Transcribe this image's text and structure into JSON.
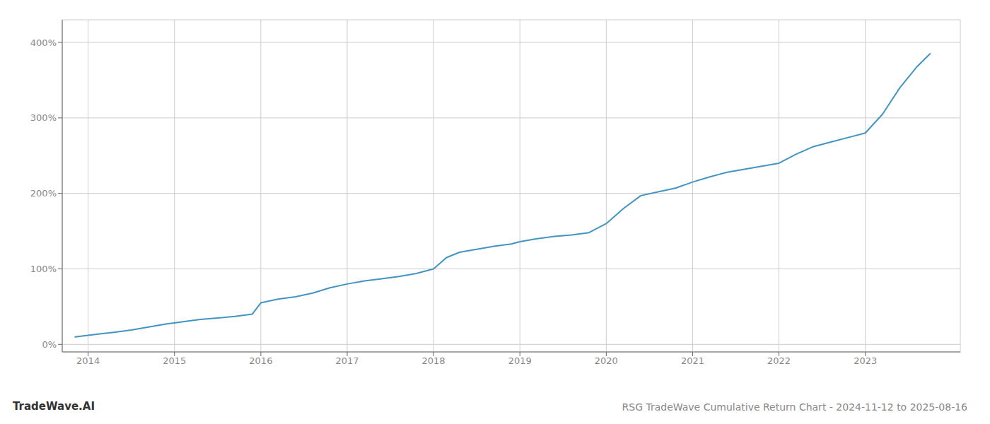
{
  "chart_data": {
    "type": "line",
    "title": "RSG TradeWave Cumulative Return Chart - 2024-11-12 to 2025-08-16",
    "annotations": [
      "TradeWave.AI"
    ],
    "x": [
      2013.85,
      2014.0,
      2014.15,
      2014.3,
      2014.5,
      2014.7,
      2014.9,
      2015.1,
      2015.3,
      2015.5,
      2015.7,
      2015.9,
      2016.0,
      2016.2,
      2016.4,
      2016.6,
      2016.8,
      2017.0,
      2017.2,
      2017.4,
      2017.6,
      2017.8,
      2018.0,
      2018.15,
      2018.3,
      2018.5,
      2018.7,
      2018.9,
      2019.0,
      2019.2,
      2019.4,
      2019.6,
      2019.8,
      2020.0,
      2020.2,
      2020.4,
      2020.6,
      2020.8,
      2021.0,
      2021.2,
      2021.4,
      2021.6,
      2021.8,
      2022.0,
      2022.2,
      2022.4,
      2022.6,
      2022.8,
      2023.0,
      2023.2,
      2023.4,
      2023.6,
      2023.75
    ],
    "values": [
      10,
      12,
      14,
      16,
      19,
      23,
      27,
      30,
      33,
      35,
      37,
      40,
      55,
      60,
      63,
      68,
      75,
      80,
      84,
      87,
      90,
      94,
      100,
      115,
      122,
      126,
      130,
      133,
      136,
      140,
      143,
      145,
      148,
      160,
      180,
      197,
      202,
      207,
      215,
      222,
      228,
      232,
      236,
      240,
      252,
      262,
      268,
      274,
      280,
      305,
      340,
      368,
      385
    ],
    "color": "#4393c3",
    "xlim": [
      2013.7,
      2024.1
    ],
    "xticks": [
      2014,
      2015,
      2016,
      2017,
      2018,
      2019,
      2020,
      2021,
      2022,
      2023
    ],
    "ylim": [
      -10,
      430
    ],
    "yticks": [
      {
        "value": 0,
        "label": "0%"
      },
      {
        "value": 100,
        "label": "100%"
      },
      {
        "value": 200,
        "label": "200%"
      },
      {
        "value": 300,
        "label": "300%"
      },
      {
        "value": 400,
        "label": "400%"
      }
    ],
    "grid": true
  }
}
